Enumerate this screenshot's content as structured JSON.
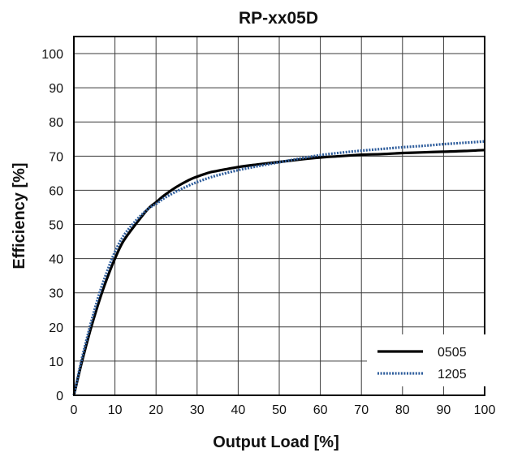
{
  "chart_data": {
    "type": "line",
    "title": "RP-xx05D",
    "xlabel": "Output Load [%]",
    "ylabel": "Efficiency [%]",
    "xlim": [
      0,
      100
    ],
    "ylim": [
      0,
      105
    ],
    "xticks": [
      0,
      10,
      20,
      30,
      40,
      50,
      60,
      70,
      80,
      90,
      100
    ],
    "yticks": [
      0,
      10,
      20,
      30,
      40,
      50,
      60,
      70,
      80,
      90,
      100
    ],
    "grid": true,
    "legend_position": "bottom-right",
    "series": [
      {
        "name": "0505",
        "color": "#000000",
        "style": "solid",
        "x": [
          0,
          2,
          4,
          6,
          8,
          10,
          12,
          15,
          18,
          20,
          22,
          25,
          28,
          30,
          33,
          35,
          40,
          45,
          50,
          55,
          60,
          65,
          70,
          75,
          80,
          85,
          90,
          95,
          100
        ],
        "y": [
          0,
          10,
          19,
          27,
          34,
          40,
          45,
          50,
          54.5,
          56.5,
          58.5,
          61,
          63,
          64,
          65.2,
          65.7,
          66.8,
          67.6,
          68.3,
          69,
          69.6,
          70,
          70.4,
          70.6,
          70.9,
          71.1,
          71.3,
          71.5,
          71.8
        ]
      },
      {
        "name": "1205",
        "color": "#2e5d9c",
        "style": "dotted",
        "x": [
          0,
          2,
          4,
          6,
          8,
          10,
          12,
          15,
          18,
          20,
          22,
          25,
          28,
          30,
          33,
          35,
          40,
          45,
          50,
          55,
          60,
          65,
          70,
          75,
          80,
          85,
          90,
          95,
          100
        ],
        "y": [
          0,
          11,
          20.5,
          29,
          36,
          42,
          46.5,
          51,
          54.5,
          56,
          57.7,
          59.7,
          61.4,
          62.4,
          63.7,
          64.4,
          65.9,
          67.1,
          68.2,
          69.3,
          70.3,
          71,
          71.6,
          72.1,
          72.6,
          73,
          73.5,
          73.9,
          74.3
        ]
      }
    ]
  }
}
